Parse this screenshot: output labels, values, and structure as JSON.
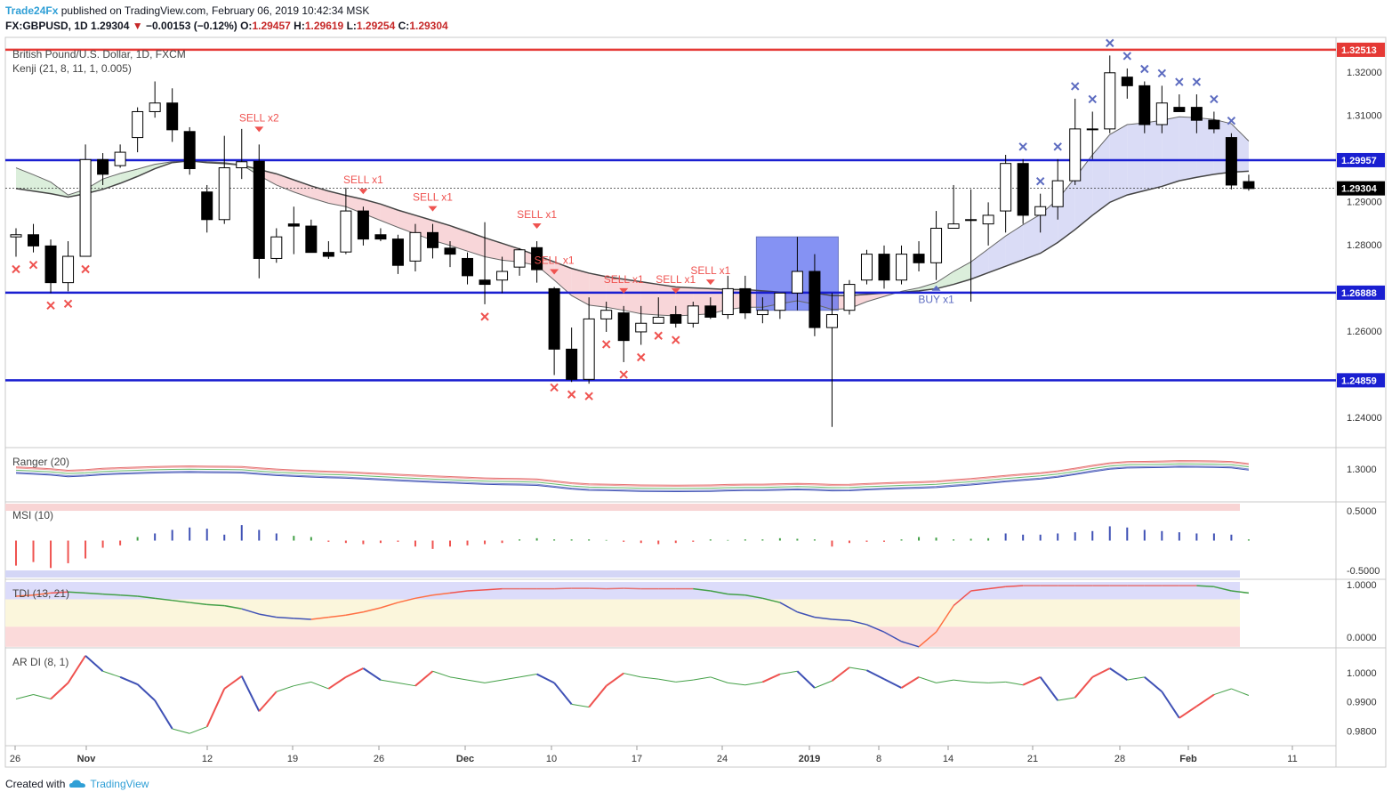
{
  "header": {
    "publisher": "Trade24Fx",
    "published_text": "published on TradingView.com, February 06, 2019 10:42:34 MSK",
    "symbol": "FX:GBPUSD, 1D",
    "last": "1.29304",
    "change": "−0.00153 (−0.12%)",
    "o_label": "O:",
    "o": "1.29457",
    "h_label": "H:",
    "h": "1.29619",
    "l_label": "L:",
    "l": "1.29254",
    "c_label": "C:",
    "c": "1.29304"
  },
  "footer": {
    "created_with": "Created with",
    "brand": "TradingView"
  },
  "colors": {
    "bull_candle": "#ffffff",
    "bear_candle": "#000000",
    "resistance_line": "#e53935",
    "level_line": "#1a1fd1",
    "sell_signal": "#ef5350",
    "buy_signal": "#5c6bc0",
    "cloud_bear": "#f6c8cc",
    "cloud_bull": "#cfe8cf",
    "cloud_blue": "#cdd0f3"
  },
  "chart_data": [
    {
      "type": "candlestick",
      "title": "British Pound/U.S. Dollar, 1D, FXCM",
      "indicator": "Kenji (21, 8, 11, 1, 0.005)",
      "x_ticks": [
        "26",
        "Nov",
        "12",
        "19",
        "26",
        "Dec",
        "10",
        "17",
        "24",
        "2019",
        "8",
        "14",
        "21",
        "28",
        "Feb",
        "11"
      ],
      "y_ticks": [
        "1.32000",
        "1.31000",
        "1.29000",
        "1.28000",
        "1.26000",
        "1.24000"
      ],
      "ylim": [
        1.233,
        1.328
      ],
      "horizontal_levels": [
        {
          "label": "1.32513",
          "value": 1.32513,
          "color": "red"
        },
        {
          "label": "1.29957",
          "value": 1.29957,
          "color": "blue"
        },
        {
          "label": "1.29304",
          "value": 1.29304,
          "color": "last"
        },
        {
          "label": "1.26888",
          "value": 1.26888,
          "color": "blue"
        },
        {
          "label": "1.24859",
          "value": 1.24859,
          "color": "blue"
        }
      ],
      "candles": [
        [
          1.2818,
          1.2838,
          1.2772,
          1.2823
        ],
        [
          1.2823,
          1.2848,
          1.2782,
          1.2797
        ],
        [
          1.2797,
          1.2812,
          1.2688,
          1.2712
        ],
        [
          1.2712,
          1.2808,
          1.2692,
          1.2773
        ],
        [
          1.2773,
          1.3032,
          1.2772,
          1.2997
        ],
        [
          1.2997,
          1.3012,
          1.2938,
          1.2963
        ],
        [
          1.2983,
          1.3032,
          1.2978,
          1.3014
        ],
        [
          1.3048,
          1.3118,
          1.3014,
          1.3108
        ],
        [
          1.3108,
          1.3178,
          1.3094,
          1.3128
        ],
        [
          1.3128,
          1.3162,
          1.3038,
          1.3066
        ],
        [
          1.3062,
          1.3072,
          1.2962,
          1.2976
        ],
        [
          1.2922,
          1.2938,
          1.2828,
          1.2858
        ],
        [
          1.2858,
          1.3052,
          1.2848,
          1.2978
        ],
        [
          1.2978,
          1.3068,
          1.2952,
          1.2992
        ],
        [
          1.2993,
          1.3032,
          1.2722,
          1.2768
        ],
        [
          1.2768,
          1.2838,
          1.2758,
          1.2818
        ],
        [
          1.2848,
          1.2888,
          1.2778,
          1.2843
        ],
        [
          1.2843,
          1.2858,
          1.2782,
          1.2782
        ],
        [
          1.2782,
          1.2808,
          1.2767,
          1.2773
        ],
        [
          1.2783,
          1.2932,
          1.2778,
          1.2878
        ],
        [
          1.2878,
          1.2888,
          1.2798,
          1.2813
        ],
        [
          1.2823,
          1.2838,
          1.2808,
          1.2813
        ],
        [
          1.2813,
          1.2823,
          1.2732,
          1.2752
        ],
        [
          1.2762,
          1.2848,
          1.2738,
          1.2828
        ],
        [
          1.2828,
          1.2848,
          1.2768,
          1.2793
        ],
        [
          1.2792,
          1.2808,
          1.2748,
          1.2778
        ],
        [
          1.2768,
          1.2782,
          1.2708,
          1.2728
        ],
        [
          1.2718,
          1.2852,
          1.2662,
          1.2708
        ],
        [
          1.2718,
          1.2772,
          1.2688,
          1.2738
        ],
        [
          1.2748,
          1.2792,
          1.2728,
          1.2788
        ],
        [
          1.2793,
          1.2808,
          1.2712,
          1.2742
        ],
        [
          1.2698,
          1.2702,
          1.2498,
          1.2558
        ],
        [
          1.2558,
          1.2608,
          1.2482,
          1.2488
        ],
        [
          1.2488,
          1.2678,
          1.2478,
          1.2628
        ],
        [
          1.2628,
          1.2668,
          1.2598,
          1.2648
        ],
        [
          1.2642,
          1.2658,
          1.2528,
          1.2578
        ],
        [
          1.2598,
          1.2658,
          1.2568,
          1.2618
        ],
        [
          1.2618,
          1.2678,
          1.2618,
          1.2632
        ],
        [
          1.2638,
          1.2658,
          1.2608,
          1.2618
        ],
        [
          1.2618,
          1.2668,
          1.2608,
          1.2658
        ],
        [
          1.2658,
          1.2678,
          1.2628,
          1.2632
        ],
        [
          1.2638,
          1.2728,
          1.2628,
          1.2698
        ],
        [
          1.2698,
          1.2728,
          1.2628,
          1.2642
        ],
        [
          1.2638,
          1.2678,
          1.2618,
          1.2648
        ],
        [
          1.2648,
          1.2688,
          1.2628,
          1.2688
        ],
        [
          1.2688,
          1.2818,
          1.2648,
          1.2738
        ],
        [
          1.2738,
          1.2778,
          1.2588,
          1.2608
        ],
        [
          1.2608,
          1.2688,
          1.2378,
          1.2638
        ],
        [
          1.2648,
          1.2718,
          1.2638,
          1.2708
        ],
        [
          1.2718,
          1.2788,
          1.2708,
          1.2778
        ],
        [
          1.2778,
          1.2798,
          1.2698,
          1.2718
        ],
        [
          1.2718,
          1.2798,
          1.2708,
          1.2778
        ],
        [
          1.2778,
          1.2808,
          1.2738,
          1.2758
        ],
        [
          1.2758,
          1.2878,
          1.2718,
          1.2838
        ],
        [
          1.2838,
          1.2938,
          1.2838,
          1.2848
        ],
        [
          1.2858,
          1.2928,
          1.2668,
          1.2858
        ],
        [
          1.2848,
          1.2898,
          1.2798,
          1.2868
        ],
        [
          1.2878,
          1.3008,
          1.2828,
          1.2988
        ],
        [
          1.2988,
          1.2998,
          1.2848,
          1.2868
        ],
        [
          1.2868,
          1.2918,
          1.2828,
          1.2888
        ],
        [
          1.2888,
          1.2998,
          1.2858,
          1.2948
        ],
        [
          1.2948,
          1.3138,
          1.2938,
          1.3068
        ],
        [
          1.3068,
          1.3108,
          1.2998,
          1.3068
        ],
        [
          1.3068,
          1.3238,
          1.3058,
          1.3198
        ],
        [
          1.3188,
          1.3208,
          1.3138,
          1.3168
        ],
        [
          1.3168,
          1.3178,
          1.3058,
          1.3078
        ],
        [
          1.3078,
          1.3168,
          1.3058,
          1.3128
        ],
        [
          1.3118,
          1.3148,
          1.3108,
          1.3108
        ],
        [
          1.3118,
          1.3148,
          1.3058,
          1.3088
        ],
        [
          1.3088,
          1.3108,
          1.3058,
          1.3068
        ],
        [
          1.3048,
          1.3058,
          1.2928,
          1.2938
        ],
        [
          1.2946,
          1.2962,
          1.2925,
          1.293
        ]
      ],
      "ma_fast": [
        1.2978,
        1.2962,
        1.2945,
        1.2915,
        1.2928,
        1.2952,
        1.2965,
        1.2975,
        1.2986,
        1.2992,
        1.2996,
        1.2992,
        1.299,
        1.2985,
        1.296,
        1.2938,
        1.2922,
        1.2908,
        1.2896,
        1.2888,
        1.2872,
        1.2856,
        1.284,
        1.2825,
        1.281,
        1.2798,
        1.2785,
        1.2772,
        1.2764,
        1.276,
        1.2752,
        1.2718,
        1.2682,
        1.266,
        1.2655,
        1.2648,
        1.264,
        1.2637,
        1.2635,
        1.2637,
        1.264,
        1.265,
        1.2655,
        1.2655,
        1.2663,
        1.267,
        1.2662,
        1.265,
        1.2652,
        1.2668,
        1.268,
        1.2692,
        1.27,
        1.2712,
        1.2738,
        1.276,
        1.279,
        1.282,
        1.2846,
        1.287,
        1.2905,
        1.2955,
        1.3008,
        1.3055,
        1.3078,
        1.3082,
        1.3088,
        1.3096,
        1.3094,
        1.309,
        1.308,
        1.304
      ],
      "ma_slow": [
        1.293,
        1.2924,
        1.2918,
        1.291,
        1.2918,
        1.2928,
        1.2942,
        1.2958,
        1.2976,
        1.299,
        1.2994,
        1.299,
        1.2988,
        1.2984,
        1.2974,
        1.2964,
        1.295,
        1.2936,
        1.2924,
        1.2914,
        1.2905,
        1.2894,
        1.288,
        1.2868,
        1.2856,
        1.2844,
        1.283,
        1.2816,
        1.2803,
        1.279,
        1.2775,
        1.276,
        1.2745,
        1.2734,
        1.2726,
        1.272,
        1.2714,
        1.2708,
        1.2702,
        1.27,
        1.2698,
        1.2696,
        1.2696,
        1.2693,
        1.269,
        1.269,
        1.2688,
        1.2682,
        1.2682,
        1.2685,
        1.2688,
        1.269,
        1.2693,
        1.2698,
        1.2708,
        1.272,
        1.2735,
        1.275,
        1.2765,
        1.278,
        1.2805,
        1.2835,
        1.2868,
        1.2898,
        1.2915,
        1.2925,
        1.2935,
        1.2948,
        1.2956,
        1.2963,
        1.2968,
        1.297
      ],
      "signals": [
        {
          "index": 14,
          "label": "SELL x2",
          "dir": "sell"
        },
        {
          "index": 20,
          "label": "SELL x1",
          "dir": "sell"
        },
        {
          "index": 24,
          "label": "SELL x1",
          "dir": "sell"
        },
        {
          "index": 30,
          "label": "SELL x1",
          "dir": "sell"
        },
        {
          "index": 31,
          "label": "SELL x1",
          "dir": "sell"
        },
        {
          "index": 35,
          "label": "SELL x1",
          "dir": "sell"
        },
        {
          "index": 38,
          "label": "SELL x1",
          "dir": "sell"
        },
        {
          "index": 40,
          "label": "SELL x1",
          "dir": "sell"
        },
        {
          "index": 53,
          "label": "BUY x1",
          "dir": "buy"
        }
      ],
      "x_marks_red": [
        0,
        1,
        2,
        3,
        4,
        27,
        31,
        32,
        33,
        34,
        35,
        36,
        37,
        38
      ],
      "x_marks_blue": [
        58,
        59,
        60,
        61,
        62,
        63,
        64,
        65,
        66,
        67,
        68,
        69,
        70
      ]
    },
    {
      "type": "line",
      "title": "Ranger (20)",
      "y_ticks": [
        "1.3000"
      ]
    },
    {
      "type": "bar",
      "title": "MSI (10)",
      "y_ticks": [
        "0.5000",
        "-0.5000"
      ],
      "ylim": [
        -0.65,
        0.65
      ],
      "values": [
        -0.42,
        -0.36,
        -0.46,
        -0.38,
        -0.3,
        -0.12,
        -0.08,
        0.06,
        0.12,
        0.18,
        0.22,
        0.2,
        0.1,
        0.26,
        0.18,
        0.12,
        0.08,
        0.06,
        -0.02,
        -0.04,
        -0.06,
        -0.04,
        -0.02,
        -0.1,
        -0.14,
        -0.1,
        -0.08,
        -0.06,
        -0.04,
        0.02,
        0.04,
        0.02,
        0.02,
        0.02,
        0.01,
        -0.02,
        -0.04,
        -0.06,
        -0.04,
        -0.02,
        0.02,
        0.01,
        0.02,
        0.02,
        0.04,
        0.03,
        0.02,
        -0.1,
        -0.04,
        -0.02,
        -0.02,
        0.02,
        0.06,
        0.05,
        0.02,
        0.03,
        0.04,
        0.12,
        0.1,
        0.1,
        0.12,
        0.14,
        0.16,
        0.24,
        0.22,
        0.18,
        0.16,
        0.14,
        0.12,
        0.12,
        0.1,
        0.02
      ]
    },
    {
      "type": "line",
      "title": "TDI (13, 21)",
      "y_ticks": [
        "1.0000",
        "0.0000"
      ],
      "ylim": [
        -0.2,
        1.1
      ],
      "values": [
        0.78,
        0.8,
        0.84,
        0.86,
        0.84,
        0.82,
        0.8,
        0.78,
        0.74,
        0.7,
        0.66,
        0.62,
        0.6,
        0.54,
        0.44,
        0.38,
        0.36,
        0.34,
        0.38,
        0.42,
        0.48,
        0.56,
        0.66,
        0.74,
        0.8,
        0.84,
        0.88,
        0.9,
        0.92,
        0.92,
        0.92,
        0.92,
        0.93,
        0.93,
        0.92,
        0.93,
        0.92,
        0.92,
        0.92,
        0.92,
        0.88,
        0.82,
        0.8,
        0.74,
        0.66,
        0.48,
        0.38,
        0.34,
        0.32,
        0.24,
        0.1,
        -0.08,
        -0.18,
        0.1,
        0.6,
        0.88,
        0.92,
        0.96,
        0.98,
        0.98,
        0.98,
        0.98,
        0.98,
        0.98,
        0.98,
        0.98,
        0.98,
        0.98,
        0.98,
        0.96,
        0.88,
        0.84
      ]
    },
    {
      "type": "line",
      "title": "AR DI (8, 1)",
      "y_ticks": [
        "1.0000",
        "0.9900",
        "0.9800"
      ],
      "ylim": [
        0.975,
        1.0085
      ],
      "values": [
        0.991,
        0.9925,
        0.991,
        0.9965,
        1.0058,
        1.0005,
        0.9985,
        0.996,
        0.9905,
        0.9808,
        0.9792,
        0.9815,
        0.9945,
        0.9988,
        0.9868,
        0.9935,
        0.9955,
        0.9968,
        0.9945,
        0.9985,
        1.0015,
        0.9975,
        0.9965,
        0.9955,
        1.0005,
        0.9985,
        0.9975,
        0.9965,
        0.9975,
        0.9985,
        0.9995,
        0.9965,
        0.9892,
        0.9882,
        0.9955,
        0.9998,
        0.9985,
        0.9978,
        0.9968,
        0.9975,
        0.9985,
        0.9965,
        0.9958,
        0.9968,
        0.9995,
        1.0005,
        0.9948,
        0.9972,
        1.0018,
        1.0008,
        0.9978,
        0.9948,
        0.9985,
        0.9965,
        0.9975,
        0.9968,
        0.9965,
        0.9968,
        0.9958,
        0.9985,
        0.9905,
        0.9915,
        0.9985,
        1.0015,
        0.9975,
        0.9985,
        0.9935,
        0.9845,
        0.9885,
        0.9925,
        0.9945,
        0.9922
      ]
    }
  ]
}
